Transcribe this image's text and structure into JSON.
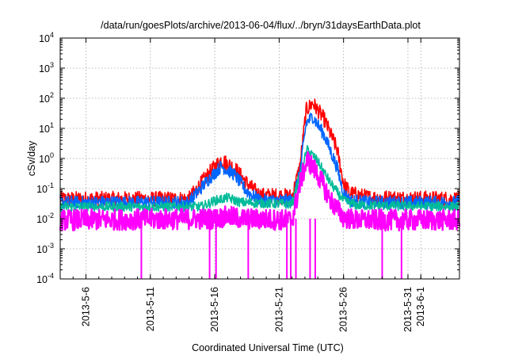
{
  "chart_data": {
    "type": "line",
    "title": "/data/run/goesPlots/archive/2013-06-04/flux/../bryn/31daysEarthData.plot",
    "xlabel": "Coordinated Universal Time (UTC)",
    "ylabel": "cSv/day",
    "yscale": "log",
    "ylim": [
      0.0001,
      10000
    ],
    "xlim": [
      "2013-05-04",
      "2013-06-04"
    ],
    "grid": true,
    "legend": "none",
    "x_ticks": [
      "2013-5-6",
      "2013-5-11",
      "2013-5-16",
      "2013-5-21",
      "2013-5-26",
      "2013-5-31",
      "2013-6-1"
    ],
    "y_ticks": [
      {
        "value": 0.0001,
        "base": "10",
        "exp": "-4"
      },
      {
        "value": 0.001,
        "base": "10",
        "exp": "-3"
      },
      {
        "value": 0.01,
        "base": "10",
        "exp": "-2"
      },
      {
        "value": 0.1,
        "base": "10",
        "exp": "-1"
      },
      {
        "value": 1,
        "base": "10",
        "exp": "0"
      },
      {
        "value": 10,
        "base": "10",
        "exp": "1"
      },
      {
        "value": 100,
        "base": "10",
        "exp": "2"
      },
      {
        "value": 1000,
        "base": "10",
        "exp": "3"
      },
      {
        "value": 10000,
        "base": "10",
        "exp": "4"
      }
    ],
    "series": [
      {
        "color": "#ff0000",
        "noise": 0.26,
        "points": [
          [
            "2013-05-04",
            0.045
          ],
          [
            "2013-05-14",
            0.045
          ],
          [
            "2013-05-15.5",
            0.3
          ],
          [
            "2013-05-16.5",
            0.9
          ],
          [
            "2013-05-17.5",
            0.5
          ],
          [
            "2013-05-18.5",
            0.15
          ],
          [
            "2013-05-19.5",
            0.06
          ],
          [
            "2013-05-22",
            0.055
          ],
          [
            "2013-05-22.6",
            0.5
          ],
          [
            "2013-05-23.1",
            40
          ],
          [
            "2013-05-23.6",
            70
          ],
          [
            "2013-05-24.5",
            20
          ],
          [
            "2013-05-25.5",
            2
          ],
          [
            "2013-05-26",
            0.15
          ],
          [
            "2013-05-26.5",
            0.07
          ],
          [
            "2013-05-28",
            0.05
          ],
          [
            "2013-06-04",
            0.045
          ]
        ]
      },
      {
        "color": "#0066ff",
        "noise": 0.22,
        "points": [
          [
            "2013-05-04",
            0.035
          ],
          [
            "2013-05-14",
            0.035
          ],
          [
            "2013-05-15.5",
            0.2
          ],
          [
            "2013-05-16.5",
            0.55
          ],
          [
            "2013-05-17.5",
            0.3
          ],
          [
            "2013-05-18.5",
            0.08
          ],
          [
            "2013-05-19.5",
            0.04
          ],
          [
            "2013-05-22",
            0.04
          ],
          [
            "2013-05-22.6",
            0.3
          ],
          [
            "2013-05-23.1",
            15
          ],
          [
            "2013-05-23.6",
            25
          ],
          [
            "2013-05-24.5",
            6
          ],
          [
            "2013-05-25.5",
            0.5
          ],
          [
            "2013-05-26",
            0.07
          ],
          [
            "2013-05-26.5",
            0.04
          ],
          [
            "2013-05-28",
            0.035
          ],
          [
            "2013-06-04",
            0.035
          ]
        ]
      },
      {
        "color": "#00bb99",
        "noise": 0.16,
        "points": [
          [
            "2013-05-04",
            0.025
          ],
          [
            "2013-05-15",
            0.025
          ],
          [
            "2013-05-16",
            0.04
          ],
          [
            "2013-05-17",
            0.05
          ],
          [
            "2013-05-18",
            0.035
          ],
          [
            "2013-05-22",
            0.03
          ],
          [
            "2013-05-22.7",
            0.4
          ],
          [
            "2013-05-23.2",
            2
          ],
          [
            "2013-05-24",
            0.8
          ],
          [
            "2013-05-25",
            0.15
          ],
          [
            "2013-05-26",
            0.04
          ],
          [
            "2013-05-27",
            0.028
          ],
          [
            "2013-06-04",
            0.025
          ]
        ]
      },
      {
        "color": "#ff00ff",
        "noise": 0.35,
        "points": [
          [
            "2013-05-04",
            0.009
          ],
          [
            "2013-05-16",
            0.01
          ],
          [
            "2013-05-17",
            0.012
          ],
          [
            "2013-05-18",
            0.01
          ],
          [
            "2013-05-22",
            0.009
          ],
          [
            "2013-05-22.7",
            0.2
          ],
          [
            "2013-05-23.2",
            0.9
          ],
          [
            "2013-05-24",
            0.3
          ],
          [
            "2013-05-25",
            0.04
          ],
          [
            "2013-05-26",
            0.011
          ],
          [
            "2013-05-27",
            0.009
          ],
          [
            "2013-06-04",
            0.009
          ]
        ]
      }
    ],
    "dropouts": [
      "2013-05-10.3",
      "2013-05-15.6",
      "2013-05-16.1",
      "2013-05-18.6",
      "2013-05-21.6",
      "2013-05-21.9",
      "2013-05-22.3",
      "2013-05-23.4",
      "2013-05-23.8",
      "2013-05-29",
      "2013-05-30.5"
    ]
  }
}
